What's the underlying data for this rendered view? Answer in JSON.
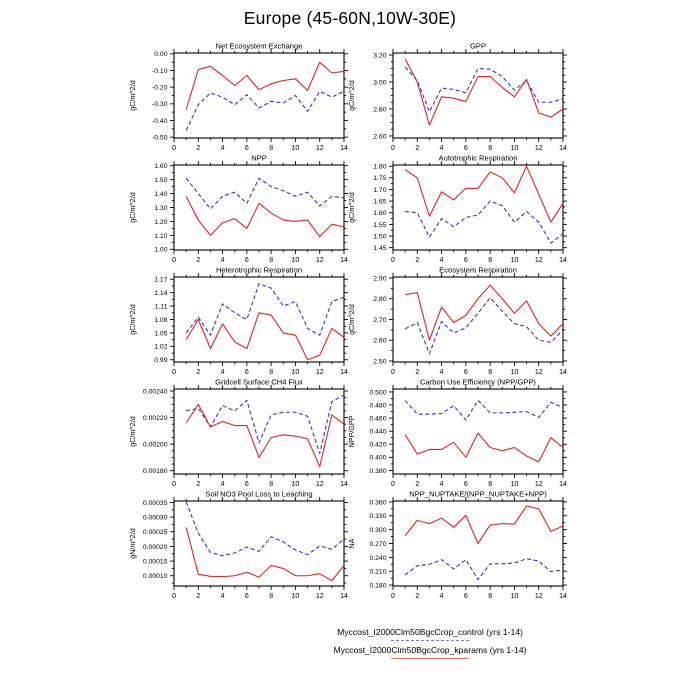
{
  "title": "Europe (45-60N,10W-30E)",
  "colors": {
    "control": "#3333cc",
    "kparams": "#dd2222"
  },
  "x_axis": {
    "min": 0,
    "max": 14,
    "major": [
      0,
      2,
      4,
      6,
      8,
      10,
      12,
      14
    ],
    "minor": [
      1,
      3,
      5,
      7,
      9,
      11,
      13
    ],
    "labels": [
      "0",
      "2",
      "4",
      "6",
      "8",
      "10",
      "12",
      "14"
    ]
  },
  "chart_data": [
    {
      "id": "net-ecosystem-exchange",
      "type": "line",
      "title": "Net Ecosystem Exchange",
      "ylabel": "gC/m^2/d",
      "x": [
        1,
        2,
        3,
        4,
        5,
        6,
        7,
        8,
        9,
        10,
        11,
        12,
        13,
        14
      ],
      "ylim": [
        -0.505,
        0.005
      ],
      "yticks": [
        0.0,
        -0.1,
        -0.2,
        -0.3,
        -0.4,
        -0.5
      ],
      "ytick_labels": [
        "0.00",
        "-0.10",
        "-0.20",
        "-0.30",
        "-0.40",
        "-0.50"
      ],
      "yminor": 0.05,
      "series": [
        {
          "name": "control",
          "style": "dashed",
          "color": "control",
          "values": [
            -0.46,
            -0.305,
            -0.235,
            -0.26,
            -0.305,
            -0.245,
            -0.325,
            -0.285,
            -0.295,
            -0.25,
            -0.345,
            -0.225,
            -0.26,
            -0.225
          ]
        },
        {
          "name": "kparams",
          "style": "solid",
          "color": "kparams",
          "values": [
            -0.335,
            -0.095,
            -0.075,
            -0.13,
            -0.19,
            -0.13,
            -0.215,
            -0.18,
            -0.16,
            -0.15,
            -0.22,
            -0.05,
            -0.115,
            -0.105
          ]
        }
      ]
    },
    {
      "id": "gpp",
      "type": "line",
      "title": "GPP",
      "ylabel": "gC/m^2/d",
      "x": [
        1,
        2,
        3,
        4,
        5,
        6,
        7,
        8,
        9,
        10,
        11,
        12,
        13,
        14
      ],
      "ylim": [
        2.585,
        3.215
      ],
      "yticks": [
        3.2,
        3.0,
        2.8,
        2.6
      ],
      "ytick_labels": [
        "3.20",
        "3.00",
        "2.80",
        "2.60"
      ],
      "yminor": 0.05,
      "series": [
        {
          "name": "control",
          "style": "dashed",
          "color": "control",
          "values": [
            3.11,
            3.01,
            2.78,
            2.955,
            2.945,
            2.92,
            3.1,
            3.095,
            3.04,
            2.94,
            3.01,
            2.85,
            2.85,
            2.875
          ]
        },
        {
          "name": "kparams",
          "style": "solid",
          "color": "kparams",
          "values": [
            3.17,
            3.0,
            2.68,
            2.89,
            2.88,
            2.855,
            3.04,
            3.04,
            2.96,
            2.89,
            3.02,
            2.77,
            2.74,
            2.8
          ]
        }
      ]
    },
    {
      "id": "npp",
      "type": "line",
      "title": "NPP",
      "ylabel": "gC/m^2/d",
      "x": [
        1,
        2,
        3,
        4,
        5,
        6,
        7,
        8,
        9,
        10,
        11,
        12,
        13,
        14
      ],
      "ylim": [
        0.995,
        1.605
      ],
      "yticks": [
        1.6,
        1.5,
        1.4,
        1.3,
        1.2,
        1.1,
        1.0
      ],
      "ytick_labels": [
        "1.60",
        "1.50",
        "1.40",
        "1.30",
        "1.20",
        "1.10",
        "1.00"
      ],
      "yminor": 0.05,
      "series": [
        {
          "name": "control",
          "style": "dashed",
          "color": "control",
          "values": [
            1.51,
            1.4,
            1.29,
            1.38,
            1.41,
            1.33,
            1.51,
            1.45,
            1.42,
            1.38,
            1.41,
            1.31,
            1.38,
            1.37
          ]
        },
        {
          "name": "kparams",
          "style": "solid",
          "color": "kparams",
          "values": [
            1.38,
            1.21,
            1.1,
            1.19,
            1.22,
            1.15,
            1.33,
            1.26,
            1.21,
            1.2,
            1.21,
            1.09,
            1.18,
            1.16
          ]
        }
      ]
    },
    {
      "id": "autotrophic-respiration",
      "type": "line",
      "title": "Autotrophic Respiration",
      "ylabel": "gC/m^2/d",
      "x": [
        1,
        2,
        3,
        4,
        5,
        6,
        7,
        8,
        9,
        10,
        11,
        12,
        13,
        14
      ],
      "ylim": [
        1.44,
        1.805
      ],
      "yticks": [
        1.8,
        1.75,
        1.7,
        1.65,
        1.6,
        1.55,
        1.5,
        1.45
      ],
      "ytick_labels": [
        "1.80",
        "1.75",
        "1.70",
        "1.65",
        "1.60",
        "1.55",
        "1.50",
        "1.45"
      ],
      "yminor": 0.025,
      "series": [
        {
          "name": "control",
          "style": "dashed",
          "color": "control",
          "values": [
            1.605,
            1.6,
            1.495,
            1.575,
            1.54,
            1.58,
            1.59,
            1.65,
            1.63,
            1.56,
            1.605,
            1.56,
            1.47,
            1.51
          ]
        },
        {
          "name": "kparams",
          "style": "solid",
          "color": "kparams",
          "values": [
            1.785,
            1.75,
            1.585,
            1.69,
            1.655,
            1.705,
            1.705,
            1.775,
            1.75,
            1.685,
            1.8,
            1.68,
            1.56,
            1.64
          ]
        }
      ]
    },
    {
      "id": "heterotrophic-respiration",
      "type": "line",
      "title": "Heterotrophic Respiration",
      "ylabel": "gC/m^2/d",
      "x": [
        1,
        2,
        3,
        4,
        5,
        6,
        7,
        8,
        9,
        10,
        11,
        12,
        13,
        14
      ],
      "ylim": [
        0.985,
        1.175
      ],
      "yticks": [
        1.17,
        1.14,
        1.11,
        1.08,
        1.05,
        1.02,
        0.99
      ],
      "ytick_labels": [
        "1.17",
        "1.14",
        "1.11",
        "1.08",
        "1.05",
        "1.02",
        "0.99"
      ],
      "yminor": 0.015,
      "series": [
        {
          "name": "control",
          "style": "dashed",
          "color": "control",
          "values": [
            1.05,
            1.085,
            1.045,
            1.115,
            1.095,
            1.08,
            1.16,
            1.15,
            1.11,
            1.12,
            1.06,
            1.045,
            1.12,
            1.13
          ]
        },
        {
          "name": "kparams",
          "style": "solid",
          "color": "kparams",
          "values": [
            1.035,
            1.08,
            1.015,
            1.07,
            1.03,
            1.015,
            1.095,
            1.09,
            1.05,
            1.045,
            0.99,
            1.0,
            1.06,
            1.04
          ]
        }
      ]
    },
    {
      "id": "ecosystem-respiration",
      "type": "line",
      "title": "Ecosystem Respiration",
      "ylabel": "gC/m^2/d",
      "x": [
        1,
        2,
        3,
        4,
        5,
        6,
        7,
        8,
        9,
        10,
        11,
        12,
        13,
        14
      ],
      "ylim": [
        2.495,
        2.905
      ],
      "yticks": [
        2.9,
        2.8,
        2.7,
        2.6,
        2.5
      ],
      "ytick_labels": [
        "2.90",
        "2.80",
        "2.70",
        "2.60",
        "2.50"
      ],
      "yminor": 0.05,
      "series": [
        {
          "name": "control",
          "style": "dashed",
          "color": "control",
          "values": [
            2.655,
            2.685,
            2.535,
            2.69,
            2.635,
            2.66,
            2.73,
            2.805,
            2.74,
            2.68,
            2.665,
            2.6,
            2.59,
            2.65
          ]
        },
        {
          "name": "kparams",
          "style": "solid",
          "color": "kparams",
          "values": [
            2.82,
            2.83,
            2.6,
            2.76,
            2.685,
            2.72,
            2.8,
            2.865,
            2.8,
            2.73,
            2.79,
            2.68,
            2.62,
            2.68
          ]
        }
      ]
    },
    {
      "id": "gridcell-surface-ch4-flux",
      "type": "line",
      "title": "Gridcell Surface CH4 Flux",
      "ylabel": "gC/m^2/d",
      "x": [
        1,
        2,
        3,
        4,
        5,
        6,
        7,
        8,
        9,
        10,
        11,
        12,
        13,
        14
      ],
      "ylim": [
        0.001775,
        0.002415
      ],
      "yticks": [
        0.0024,
        0.0022,
        0.002,
        0.0018
      ],
      "ytick_labels": [
        "0.00240",
        "0.00220",
        "0.00200",
        "0.00180"
      ],
      "yminor": 5e-05,
      "series": [
        {
          "name": "control",
          "style": "dashed",
          "color": "control",
          "values": [
            0.00225,
            0.00227,
            0.00213,
            0.00229,
            0.00225,
            0.00233,
            0.00201,
            0.00222,
            0.00224,
            0.00224,
            0.00221,
            0.00193,
            0.00232,
            0.00237
          ]
        },
        {
          "name": "kparams",
          "style": "solid",
          "color": "kparams",
          "values": [
            0.00216,
            0.0023,
            0.00213,
            0.00217,
            0.00214,
            0.00214,
            0.0019,
            0.00205,
            0.00207,
            0.00206,
            0.00204,
            0.00183,
            0.00222,
            0.00215
          ]
        }
      ]
    },
    {
      "id": "carbon-use-efficiency",
      "type": "line",
      "title": "Carbon Use Efficiency (NPP/GPP)",
      "ylabel": "NPP/GPP",
      "x": [
        1,
        2,
        3,
        4,
        5,
        6,
        7,
        8,
        9,
        10,
        11,
        12,
        13,
        14
      ],
      "ylim": [
        0.3745,
        0.5045
      ],
      "yticks": [
        0.5,
        0.48,
        0.46,
        0.44,
        0.42,
        0.4,
        0.38
      ],
      "ytick_labels": [
        "0.500",
        "0.480",
        "0.460",
        "0.440",
        "0.420",
        "0.400",
        "0.380"
      ],
      "yminor": 0.01,
      "series": [
        {
          "name": "control",
          "style": "dashed",
          "color": "control",
          "values": [
            0.487,
            0.466,
            0.466,
            0.467,
            0.479,
            0.457,
            0.487,
            0.468,
            0.468,
            0.469,
            0.47,
            0.461,
            0.484,
            0.476
          ]
        },
        {
          "name": "kparams",
          "style": "solid",
          "color": "kparams",
          "values": [
            0.435,
            0.405,
            0.412,
            0.412,
            0.423,
            0.4,
            0.437,
            0.415,
            0.41,
            0.415,
            0.402,
            0.393,
            0.43,
            0.415
          ]
        }
      ]
    },
    {
      "id": "soil-no3-pool-loss-to-leaching",
      "type": "line",
      "title": "Soil NO3 Pool Loss to Leaching",
      "ylabel": "gN/m^2/d",
      "x": [
        1,
        2,
        3,
        4,
        5,
        6,
        7,
        8,
        9,
        10,
        11,
        12,
        13,
        14
      ],
      "ylim": [
        6.5e-05,
        0.000355
      ],
      "yticks": [
        0.00035,
        0.0003,
        0.00025,
        0.0002,
        0.00015,
        0.0001
      ],
      "ytick_labels": [
        "0.00035",
        "0.00030",
        "0.00025",
        "0.00020",
        "0.00015",
        "0.00010"
      ],
      "yminor": 2.5e-05,
      "series": [
        {
          "name": "control",
          "style": "dashed",
          "color": "control",
          "values": [
            0.000352,
            0.000245,
            0.00018,
            0.000168,
            0.000178,
            0.000198,
            0.000183,
            0.000233,
            0.000215,
            0.000188,
            0.000172,
            0.000202,
            0.00019,
            0.000225
          ]
        },
        {
          "name": "kparams",
          "style": "solid",
          "color": "kparams",
          "values": [
            0.000265,
            0.000105,
            9.8e-05,
            9.7e-05,
            0.0001,
            0.000112,
            9.5e-05,
            0.000135,
            0.000125,
            0.0001,
            0.0001,
            0.000107,
            8.3e-05,
            0.000135
          ]
        }
      ]
    },
    {
      "id": "npp-nuptake-fraction",
      "type": "line",
      "title": "NPP_NUPTAKE/(NPP_NUPTAKE+NPP)",
      "ylabel": "NA",
      "x": [
        1,
        2,
        3,
        4,
        5,
        6,
        7,
        8,
        9,
        10,
        11,
        12,
        13,
        14
      ],
      "ylim": [
        0.178,
        0.362
      ],
      "yticks": [
        0.36,
        0.33,
        0.3,
        0.27,
        0.24,
        0.21,
        0.18
      ],
      "ytick_labels": [
        "0.360",
        "0.330",
        "0.300",
        "0.270",
        "0.240",
        "0.210",
        "0.180"
      ],
      "yminor": 0.015,
      "series": [
        {
          "name": "control",
          "style": "dashed",
          "color": "control",
          "values": [
            0.202,
            0.222,
            0.225,
            0.235,
            0.215,
            0.235,
            0.192,
            0.226,
            0.226,
            0.228,
            0.237,
            0.232,
            0.209,
            0.213
          ]
        },
        {
          "name": "kparams",
          "style": "solid",
          "color": "kparams",
          "values": [
            0.287,
            0.32,
            0.313,
            0.325,
            0.305,
            0.331,
            0.27,
            0.31,
            0.313,
            0.312,
            0.351,
            0.345,
            0.296,
            0.308
          ]
        }
      ]
    }
  ],
  "legend": {
    "items": [
      {
        "label": "Myccost_I2000Clm50BgcCrop_control (yrs 1-14)",
        "style": "dashed",
        "color": "control"
      },
      {
        "label": "Myccost_I2000Clm50BgcCrop_kparams (yrs 1-14)",
        "style": "solid",
        "color": "kparams"
      }
    ]
  }
}
